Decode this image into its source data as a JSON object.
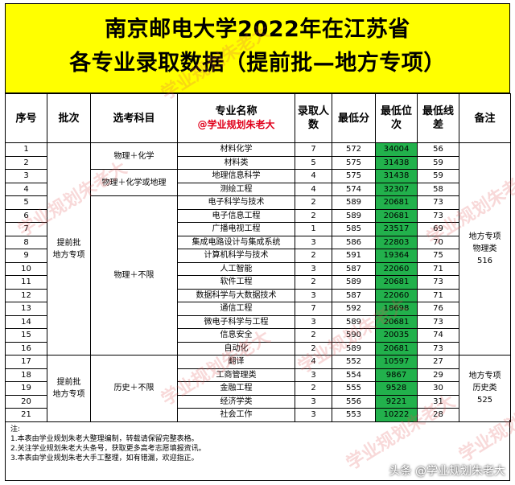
{
  "title": {
    "line1": "南京邮电大学2022年在江苏省",
    "line2": "各专业录取数据（提前批—地方专项）"
  },
  "header": {
    "seq": "序号",
    "batch": "批次",
    "subjects": "选考科目",
    "major": "专业名称",
    "major_sub": "@学业规划朱老大",
    "count": "录取人数",
    "min_score": "最低分",
    "min_rank": "最低位次",
    "min_diff": "最低线差",
    "remark": "备注"
  },
  "batch_text": "提前批地方专项",
  "subjects_groups": [
    "物理＋化学",
    "物理＋化学或地理",
    "物理＋不限",
    "历史＋不限"
  ],
  "remarks": [
    "地方专项物理类516",
    "地方专项历史类525"
  ],
  "rows": [
    {
      "seq": "1",
      "major": "材料化学",
      "count": "7",
      "score": "572",
      "rank": "34004",
      "diff": "56"
    },
    {
      "seq": "2",
      "major": "材料类",
      "count": "5",
      "score": "575",
      "rank": "31438",
      "diff": "59"
    },
    {
      "seq": "3",
      "major": "地理信息科学",
      "count": "4",
      "score": "575",
      "rank": "31438",
      "diff": "59"
    },
    {
      "seq": "4",
      "major": "测绘工程",
      "count": "4",
      "score": "574",
      "rank": "32307",
      "diff": "58"
    },
    {
      "seq": "5",
      "major": "电子科学与技术",
      "count": "2",
      "score": "589",
      "rank": "20681",
      "diff": "73"
    },
    {
      "seq": "6",
      "major": "电子信息工程",
      "count": "2",
      "score": "589",
      "rank": "20681",
      "diff": "73"
    },
    {
      "seq": "7",
      "major": "广播电视工程",
      "count": "1",
      "score": "585",
      "rank": "23517",
      "diff": "69"
    },
    {
      "seq": "8",
      "major": "集成电路设计与集成系统",
      "count": "3",
      "score": "586",
      "rank": "22803",
      "diff": "70"
    },
    {
      "seq": "9",
      "major": "计算机科学与技术",
      "count": "2",
      "score": "591",
      "rank": "19364",
      "diff": "75"
    },
    {
      "seq": "10",
      "major": "人工智能",
      "count": "3",
      "score": "587",
      "rank": "22060",
      "diff": "71"
    },
    {
      "seq": "11",
      "major": "软件工程",
      "count": "2",
      "score": "589",
      "rank": "20681",
      "diff": "73"
    },
    {
      "seq": "12",
      "major": "数据科学与大数据技术",
      "count": "3",
      "score": "587",
      "rank": "22060",
      "diff": "71"
    },
    {
      "seq": "13",
      "major": "通信工程",
      "count": "7",
      "score": "592",
      "rank": "18698",
      "diff": "76"
    },
    {
      "seq": "14",
      "major": "微电子科学与工程",
      "count": "3",
      "score": "589",
      "rank": "20681",
      "diff": "73"
    },
    {
      "seq": "15",
      "major": "信息安全",
      "count": "2",
      "score": "590",
      "rank": "20035",
      "diff": "74"
    },
    {
      "seq": "16",
      "major": "自动化",
      "count": "2",
      "score": "589",
      "rank": "20681",
      "diff": "73"
    },
    {
      "seq": "17",
      "major": "翻译",
      "count": "4",
      "score": "552",
      "rank": "10597",
      "diff": "27"
    },
    {
      "seq": "18",
      "major": "工商管理类",
      "count": "3",
      "score": "554",
      "rank": "9867",
      "diff": "29"
    },
    {
      "seq": "19",
      "major": "金融工程",
      "count": "2",
      "score": "555",
      "rank": "9528",
      "diff": "30"
    },
    {
      "seq": "20",
      "major": "经济学类",
      "count": "3",
      "score": "556",
      "rank": "9221",
      "diff": "31"
    },
    {
      "seq": "21",
      "major": "社会工作",
      "count": "3",
      "score": "553",
      "rank": "10222",
      "diff": "28"
    }
  ],
  "notes": {
    "label": "注:",
    "items": [
      "1.本表由学业规划朱老大整理编制，转载请保留完整表格。",
      "2.关注学业规划朱老大头条号，获取更多高考志愿填报资讯。",
      "3.本表由学业规划朱老大手工整理，如有错漏，欢迎指正。"
    ]
  },
  "watermark": "学业规划朱老大",
  "brand": "头条 @学业规划朱老大",
  "colors": {
    "title_bg": "#ffff00",
    "header_red": "#e0001b",
    "rank_green": "#22b14c"
  }
}
